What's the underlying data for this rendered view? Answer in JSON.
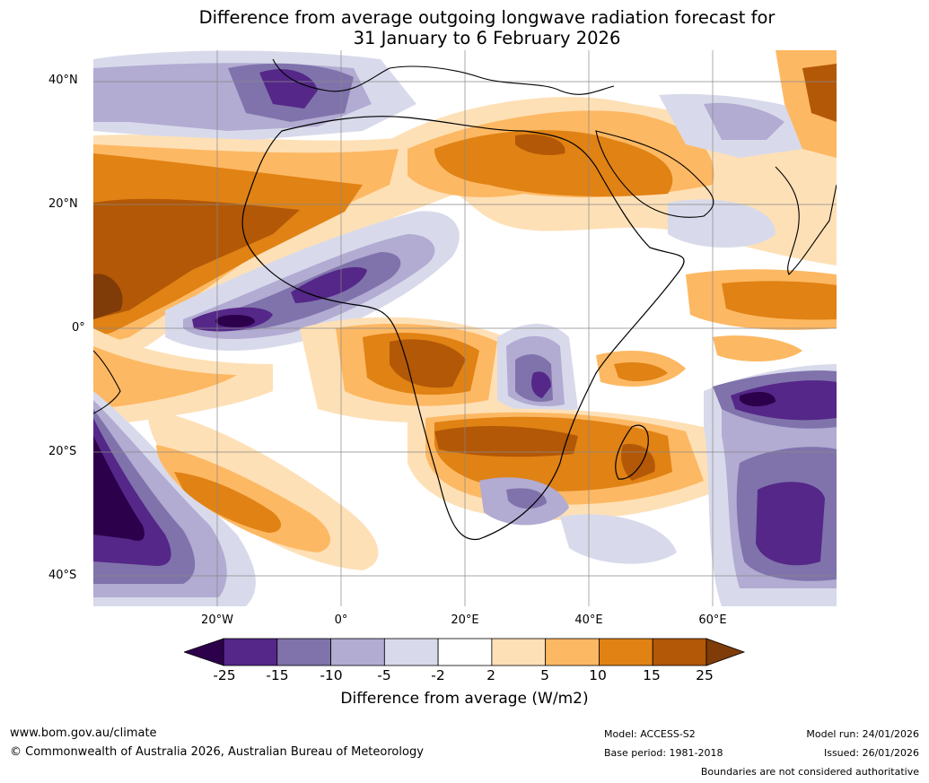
{
  "title": {
    "line1": "Difference from average outgoing longwave radiation forecast for",
    "line2": "31 January to 6 February 2026"
  },
  "map": {
    "lat_labels": [
      "40°N",
      "20°N",
      "0°",
      "20°S",
      "40°S"
    ],
    "lon_labels": [
      "20°W",
      "0°",
      "20°E",
      "40°E",
      "60°E"
    ],
    "colors": {
      "m25": "#2d004b",
      "m15_25": "#542788",
      "m10_15": "#8073ac",
      "m5_10": "#b2abd2",
      "m2_5": "#d8daeb",
      "m2_2": "#ffffff",
      "p2_5": "#fee0b6",
      "p5_10": "#fdb863",
      "p10_15": "#e08214",
      "p15_25": "#b35806",
      "p25": "#7f3b08"
    }
  },
  "colorbar": {
    "ticks": [
      "-25",
      "-15",
      "-10",
      "-5",
      "-2",
      "2",
      "5",
      "10",
      "15",
      "25"
    ],
    "label": "Difference from average (W/m2)",
    "colors": [
      "#542788",
      "#8073ac",
      "#b2abd2",
      "#d8daeb",
      "#ffffff",
      "#fee0b6",
      "#fdb863",
      "#e08214",
      "#b35806"
    ],
    "low_color": "#2d004b",
    "high_color": "#7f3b08"
  },
  "footer": {
    "url": "www.bom.gov.au/climate",
    "copyright": "© Commonwealth of Australia 2026, Australian Bureau of Meteorology",
    "model": "Model: ACCESS-S2",
    "base_period": "Base period: 1981-2018",
    "model_run": "Model run: 24/01/2026",
    "issued": "Issued: 26/01/2026",
    "disclaimer": "Boundaries are not considered authoritative"
  }
}
